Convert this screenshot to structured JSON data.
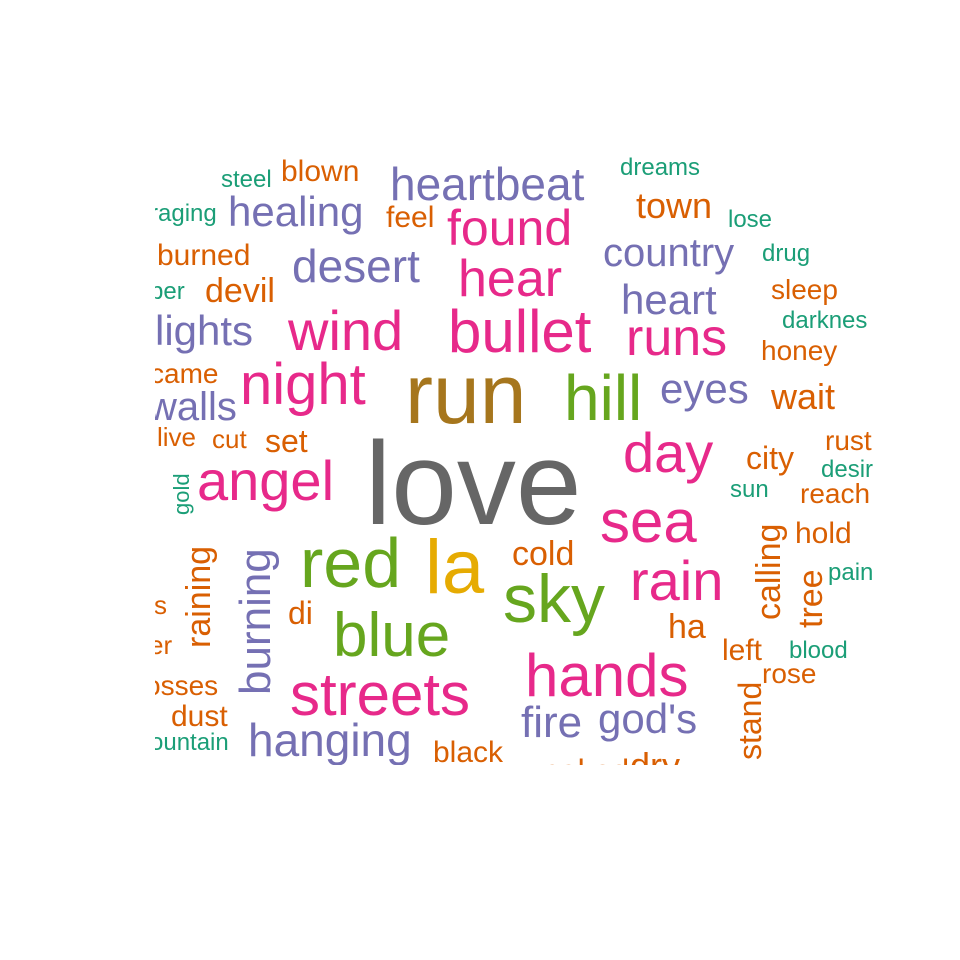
{
  "chart_data": {
    "type": "wordcloud",
    "colors": {
      "gray": "#666666",
      "brown": "#A6761D",
      "mustard": "#E6AB02",
      "green": "#66A61E",
      "magenta": "#E7298A",
      "purple": "#7570B3",
      "orange": "#D95F02",
      "teal": "#1B9E77"
    },
    "words": [
      {
        "text": "love",
        "color": "gray"
      },
      {
        "text": "run",
        "color": "brown"
      },
      {
        "text": "la",
        "color": "mustard"
      },
      {
        "text": "red",
        "color": "green"
      },
      {
        "text": "sky",
        "color": "green"
      },
      {
        "text": "blue",
        "color": "green"
      },
      {
        "text": "hill",
        "color": "green"
      },
      {
        "text": "bullet",
        "color": "magenta"
      },
      {
        "text": "wind",
        "color": "magenta"
      },
      {
        "text": "night",
        "color": "magenta"
      },
      {
        "text": "angel",
        "color": "magenta"
      },
      {
        "text": "streets",
        "color": "magenta"
      },
      {
        "text": "hands",
        "color": "magenta"
      },
      {
        "text": "sea",
        "color": "magenta"
      },
      {
        "text": "rain",
        "color": "magenta"
      },
      {
        "text": "day",
        "color": "magenta"
      },
      {
        "text": "runs",
        "color": "magenta"
      },
      {
        "text": "hear",
        "color": "magenta"
      },
      {
        "text": "found",
        "color": "magenta"
      },
      {
        "text": "heartbeat",
        "color": "purple"
      },
      {
        "text": "healing",
        "color": "purple"
      },
      {
        "text": "desert",
        "color": "purple"
      },
      {
        "text": "country",
        "color": "purple"
      },
      {
        "text": "heart",
        "color": "purple"
      },
      {
        "text": "eyes",
        "color": "purple"
      },
      {
        "text": "lights",
        "color": "purple"
      },
      {
        "text": "walls",
        "color": "purple"
      },
      {
        "text": "burning",
        "color": "purple"
      },
      {
        "text": "hanging",
        "color": "purple"
      },
      {
        "text": "fire",
        "color": "purple"
      },
      {
        "text": "god's",
        "color": "purple"
      },
      {
        "text": "blown",
        "color": "orange"
      },
      {
        "text": "feel",
        "color": "orange"
      },
      {
        "text": "town",
        "color": "orange"
      },
      {
        "text": "burned",
        "color": "orange"
      },
      {
        "text": "devil",
        "color": "orange"
      },
      {
        "text": "sleep",
        "color": "orange"
      },
      {
        "text": "honey",
        "color": "orange"
      },
      {
        "text": "wait",
        "color": "orange"
      },
      {
        "text": "came",
        "color": "orange"
      },
      {
        "text": "live",
        "color": "orange"
      },
      {
        "text": "cut",
        "color": "orange"
      },
      {
        "text": "set",
        "color": "orange"
      },
      {
        "text": "city",
        "color": "orange"
      },
      {
        "text": "rust",
        "color": "orange"
      },
      {
        "text": "reach",
        "color": "orange"
      },
      {
        "text": "hold",
        "color": "orange"
      },
      {
        "text": "cold",
        "color": "orange"
      },
      {
        "text": "di",
        "color": "orange"
      },
      {
        "text": "ha",
        "color": "orange"
      },
      {
        "text": "left",
        "color": "orange"
      },
      {
        "text": "rose",
        "color": "orange"
      },
      {
        "text": "dust",
        "color": "orange"
      },
      {
        "text": "black",
        "color": "orange"
      },
      {
        "text": "naked",
        "color": "orange"
      },
      {
        "text": "dry",
        "color": "orange"
      },
      {
        "text": "raining",
        "color": "orange"
      },
      {
        "text": "calling",
        "color": "orange"
      },
      {
        "text": "tree",
        "color": "orange"
      },
      {
        "text": "stand",
        "color": "orange"
      },
      {
        "text": "s",
        "color": "orange"
      },
      {
        "text": "er",
        "color": "orange"
      },
      {
        "text": "osses",
        "color": "orange"
      },
      {
        "text": "steel",
        "color": "teal"
      },
      {
        "text": "dreams",
        "color": "teal"
      },
      {
        "text": "raging",
        "color": "teal"
      },
      {
        "text": "lose",
        "color": "teal"
      },
      {
        "text": "drug",
        "color": "teal"
      },
      {
        "text": "per",
        "color": "teal"
      },
      {
        "text": "darknes",
        "color": "teal"
      },
      {
        "text": "desir",
        "color": "teal"
      },
      {
        "text": "sun",
        "color": "teal"
      },
      {
        "text": "gold",
        "color": "teal"
      },
      {
        "text": "pain",
        "color": "teal"
      },
      {
        "text": "blood",
        "color": "teal"
      },
      {
        "text": "ountain",
        "color": "teal"
      }
    ]
  }
}
